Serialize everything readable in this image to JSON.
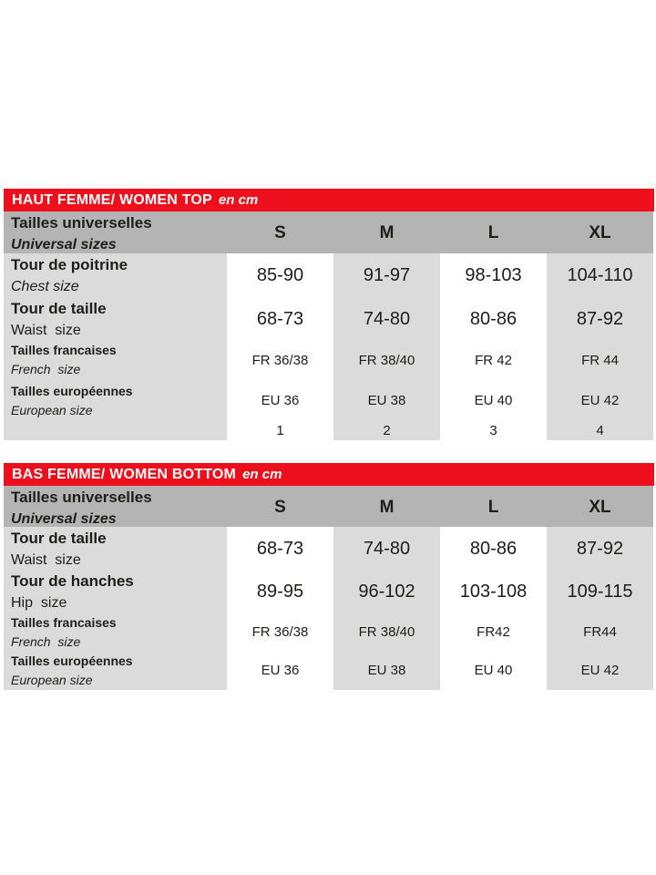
{
  "colors": {
    "banner_red": "#ee0f1d",
    "header_gray": "#b4b4b4",
    "cell_gray": "#dbdbdb",
    "text_dark": "#1d1d1b",
    "banner_text": "#ffffff"
  },
  "tables": [
    {
      "banner": {
        "title": "HAUT FEMME/ WOMEN TOP",
        "unit": "en cm"
      },
      "header": {
        "label_fr": "Tailles universelles",
        "label_en": "Universal sizes",
        "columns": [
          "S",
          "M",
          "L",
          "XL"
        ]
      },
      "rows": [
        {
          "label_fr": "Tour de poitrine",
          "label_en": "Chest size",
          "values": [
            "85-90",
            "91-97",
            "98-103",
            "104-110"
          ]
        },
        {
          "label_fr": "Tour de taille",
          "label_en": "Waist  size",
          "values": [
            "68-73",
            "74-80",
            "80-86",
            "87-92"
          ]
        },
        {
          "label_fr": "Tailles francaises",
          "label_en": "French  size",
          "values": [
            "FR 36/38",
            "FR 38/40",
            "FR 42",
            "FR 44"
          ]
        },
        {
          "label_fr": "Tailles européennes",
          "label_en": "European size",
          "values": [
            "EU 36",
            "EU 38",
            "EU 40",
            "EU 42"
          ]
        },
        {
          "label_fr": "",
          "label_en": "",
          "values": [
            "1",
            "2",
            "3",
            "4"
          ]
        }
      ]
    },
    {
      "banner": {
        "title": "BAS FEMME/ WOMEN BOTTOM",
        "unit": "en cm"
      },
      "header": {
        "label_fr": "Tailles universelles",
        "label_en": "Universal sizes",
        "columns": [
          "S",
          "M",
          "L",
          "XL"
        ]
      },
      "rows": [
        {
          "label_fr": "Tour de taille",
          "label_en": "Waist  size",
          "values": [
            "68-73",
            "74-80",
            "80-86",
            "87-92"
          ]
        },
        {
          "label_fr": "Tour de hanches",
          "label_en": "Hip  size",
          "values": [
            "89-95",
            "96-102",
            "103-108",
            "109-115"
          ]
        },
        {
          "label_fr": "Tailles francaises",
          "label_en": "French  size",
          "values": [
            "FR 36/38",
            "FR 38/40",
            "FR42",
            "FR44"
          ]
        },
        {
          "label_fr": "Tailles européennes",
          "label_en": "European size",
          "values": [
            "EU 36",
            "EU 38",
            "EU 40",
            "EU 42"
          ]
        }
      ]
    }
  ]
}
